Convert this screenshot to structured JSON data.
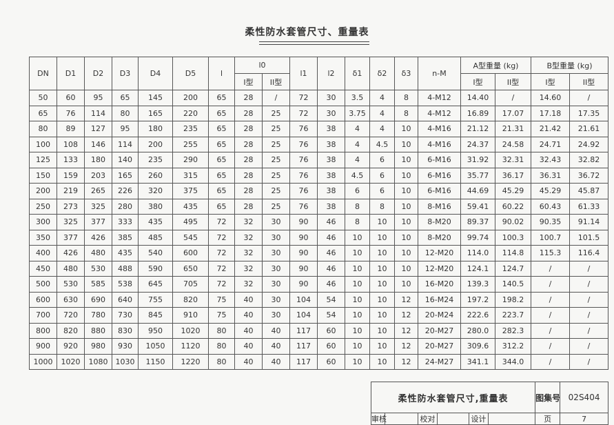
{
  "title": "柔性防水套管尺寸、重量表",
  "table": {
    "header_top": [
      "DN",
      "D1",
      "D2",
      "D3",
      "D4",
      "D5",
      "l",
      "l0",
      "l1",
      "l2",
      "δ1",
      "δ2",
      "δ3",
      "n-M",
      "A型重量 (kg)",
      "B型重量 (kg)"
    ],
    "header_sub": [
      "I型",
      "II型",
      "I型",
      "II型",
      "I型",
      "II型"
    ],
    "rows": [
      [
        "50",
        "60",
        "95",
        "65",
        "145",
        "200",
        "65",
        "28",
        "/",
        "72",
        "30",
        "3.5",
        "4",
        "8",
        "4-M12",
        "14.40",
        "/",
        "14.60",
        "/"
      ],
      [
        "65",
        "76",
        "114",
        "80",
        "165",
        "220",
        "65",
        "28",
        "25",
        "72",
        "30",
        "3.75",
        "4",
        "8",
        "4-M12",
        "16.89",
        "17.07",
        "17.18",
        "17.35"
      ],
      [
        "80",
        "89",
        "127",
        "95",
        "180",
        "235",
        "65",
        "28",
        "25",
        "76",
        "38",
        "4",
        "4",
        "10",
        "4-M16",
        "21.12",
        "21.31",
        "21.42",
        "21.61"
      ],
      [
        "100",
        "108",
        "146",
        "114",
        "200",
        "255",
        "65",
        "28",
        "25",
        "76",
        "38",
        "4",
        "4.5",
        "10",
        "4-M16",
        "24.37",
        "24.58",
        "24.71",
        "24.92"
      ],
      [
        "125",
        "133",
        "180",
        "140",
        "235",
        "290",
        "65",
        "28",
        "25",
        "76",
        "38",
        "4",
        "6",
        "10",
        "6-M16",
        "31.92",
        "32.31",
        "32.43",
        "32.82"
      ],
      [
        "150",
        "159",
        "203",
        "165",
        "260",
        "315",
        "65",
        "28",
        "25",
        "76",
        "38",
        "4.5",
        "6",
        "10",
        "6-M16",
        "35.77",
        "36.17",
        "36.31",
        "36.72"
      ],
      [
        "200",
        "219",
        "265",
        "226",
        "320",
        "375",
        "65",
        "28",
        "25",
        "76",
        "38",
        "6",
        "6",
        "10",
        "6-M16",
        "44.69",
        "45.29",
        "45.29",
        "45.87"
      ],
      [
        "250",
        "273",
        "325",
        "280",
        "380",
        "435",
        "65",
        "28",
        "25",
        "76",
        "38",
        "8",
        "8",
        "10",
        "8-M16",
        "59.41",
        "60.22",
        "60.43",
        "61.33"
      ],
      [
        "300",
        "325",
        "377",
        "333",
        "435",
        "495",
        "72",
        "32",
        "30",
        "90",
        "46",
        "8",
        "10",
        "10",
        "8-M20",
        "89.37",
        "90.02",
        "90.35",
        "91.14"
      ],
      [
        "350",
        "377",
        "426",
        "385",
        "485",
        "545",
        "72",
        "32",
        "30",
        "90",
        "46",
        "10",
        "10",
        "10",
        "8-M20",
        "99.74",
        "100.3",
        "100.7",
        "101.5"
      ],
      [
        "400",
        "426",
        "480",
        "435",
        "540",
        "600",
        "72",
        "32",
        "30",
        "90",
        "46",
        "10",
        "10",
        "10",
        "12-M20",
        "114.0",
        "114.8",
        "115.3",
        "116.4"
      ],
      [
        "450",
        "480",
        "530",
        "488",
        "590",
        "650",
        "72",
        "32",
        "30",
        "90",
        "46",
        "10",
        "10",
        "10",
        "12-M20",
        "124.1",
        "124.7",
        "/",
        "/"
      ],
      [
        "500",
        "530",
        "585",
        "538",
        "645",
        "705",
        "72",
        "32",
        "30",
        "90",
        "46",
        "10",
        "10",
        "10",
        "16-M20",
        "139.3",
        "140.5",
        "/",
        "/"
      ],
      [
        "600",
        "630",
        "690",
        "640",
        "755",
        "820",
        "75",
        "40",
        "30",
        "104",
        "54",
        "10",
        "10",
        "12",
        "16-M24",
        "197.2",
        "198.2",
        "/",
        "/"
      ],
      [
        "700",
        "720",
        "780",
        "730",
        "845",
        "910",
        "75",
        "40",
        "30",
        "104",
        "54",
        "10",
        "10",
        "12",
        "20-M24",
        "222.6",
        "223.7",
        "/",
        "/"
      ],
      [
        "800",
        "820",
        "880",
        "830",
        "950",
        "1020",
        "80",
        "40",
        "40",
        "117",
        "60",
        "10",
        "10",
        "12",
        "20-M27",
        "280.0",
        "282.3",
        "/",
        "/"
      ],
      [
        "900",
        "920",
        "980",
        "930",
        "1050",
        "1120",
        "80",
        "40",
        "40",
        "117",
        "60",
        "10",
        "10",
        "12",
        "20-M27",
        "309.6",
        "312.2",
        "/",
        "/"
      ],
      [
        "1000",
        "1020",
        "1080",
        "1030",
        "1150",
        "1220",
        "80",
        "40",
        "40",
        "117",
        "60",
        "10",
        "10",
        "12",
        "24-M27",
        "341.1",
        "344.0",
        "/",
        "/"
      ]
    ]
  },
  "title_block": {
    "title": "柔性防水套管尺寸,重量表",
    "atlas_label": "图集号",
    "atlas_no": "02S404",
    "review": "审核",
    "check": "校对",
    "design": "设计",
    "page_label": "页",
    "page_no": "7"
  }
}
